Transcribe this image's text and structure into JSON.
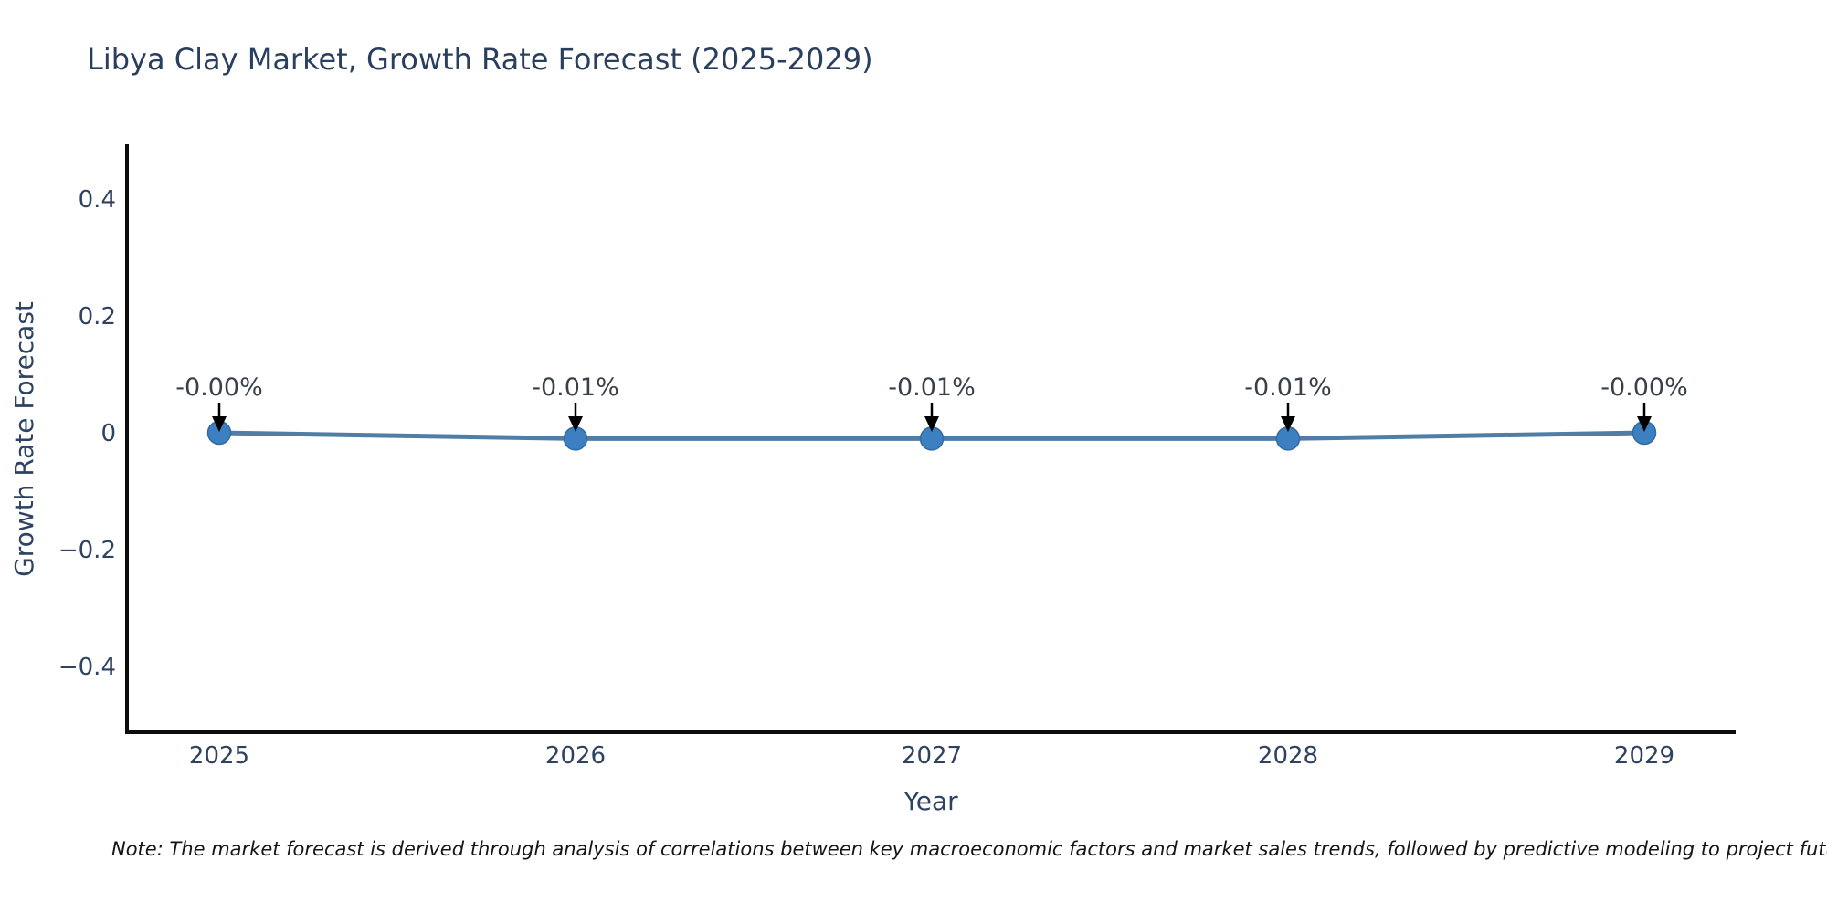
{
  "page": {
    "background": "#ffffff"
  },
  "chart_data": {
    "type": "line",
    "title": "Libya Clay Market, Growth Rate Forecast (2025-2029)",
    "xlabel": "Year",
    "ylabel": "Growth Rate Forecast",
    "categories": [
      "2025",
      "2026",
      "2027",
      "2028",
      "2029"
    ],
    "values": [
      -0.0,
      -0.01,
      -0.01,
      -0.01,
      -0.0
    ],
    "point_labels": [
      "-0.00%",
      "-0.01%",
      "-0.01%",
      "-0.01%",
      "-0.00%"
    ],
    "yticks": [
      0.4,
      0.2,
      0,
      -0.2,
      -0.4
    ],
    "ytick_labels": [
      "0.4",
      "0.2",
      "0",
      "−0.2",
      "−0.4"
    ],
    "ylim": [
      -0.5,
      0.5
    ],
    "grid": false,
    "legend_position": "none",
    "colors": {
      "line": "#4f7da6",
      "marker": "#3d80c2",
      "marker_edge": "#336b9e",
      "annotation_arrow": "#000000",
      "axis_text": "#2e4262",
      "title_text": "#2a3f5f",
      "annotation_text": "#3a404a",
      "spine": "#0d0d0d"
    }
  },
  "note": {
    "text": "Note: The market forecast is derived through analysis of correlations between key macroeconomic factors and market sales trends, followed by predictive modeling to project future sa"
  }
}
